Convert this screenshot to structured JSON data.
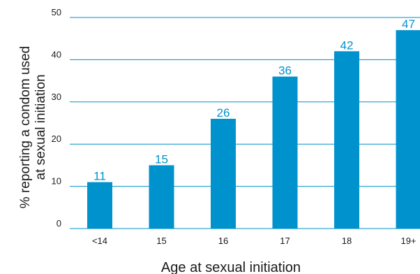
{
  "chart_data": {
    "type": "bar",
    "categories": [
      "<14",
      "15",
      "16",
      "17",
      "18",
      "19+"
    ],
    "values": [
      11,
      15,
      26,
      36,
      42,
      47
    ],
    "data_labels": [
      "11",
      "15",
      "26",
      "36",
      "42",
      "47"
    ],
    "y_ticks": [
      "0",
      "10",
      "20",
      "30",
      "40",
      "50"
    ],
    "ylim": [
      0,
      50
    ],
    "xlabel": "Age at sexual initiation",
    "ylabel_lines": [
      "% reporting a condom used",
      "at sexual initiation"
    ],
    "grid": true,
    "colors": {
      "bar": "#0092cc",
      "grid": "#0092cc",
      "label": "#0092cc"
    }
  }
}
